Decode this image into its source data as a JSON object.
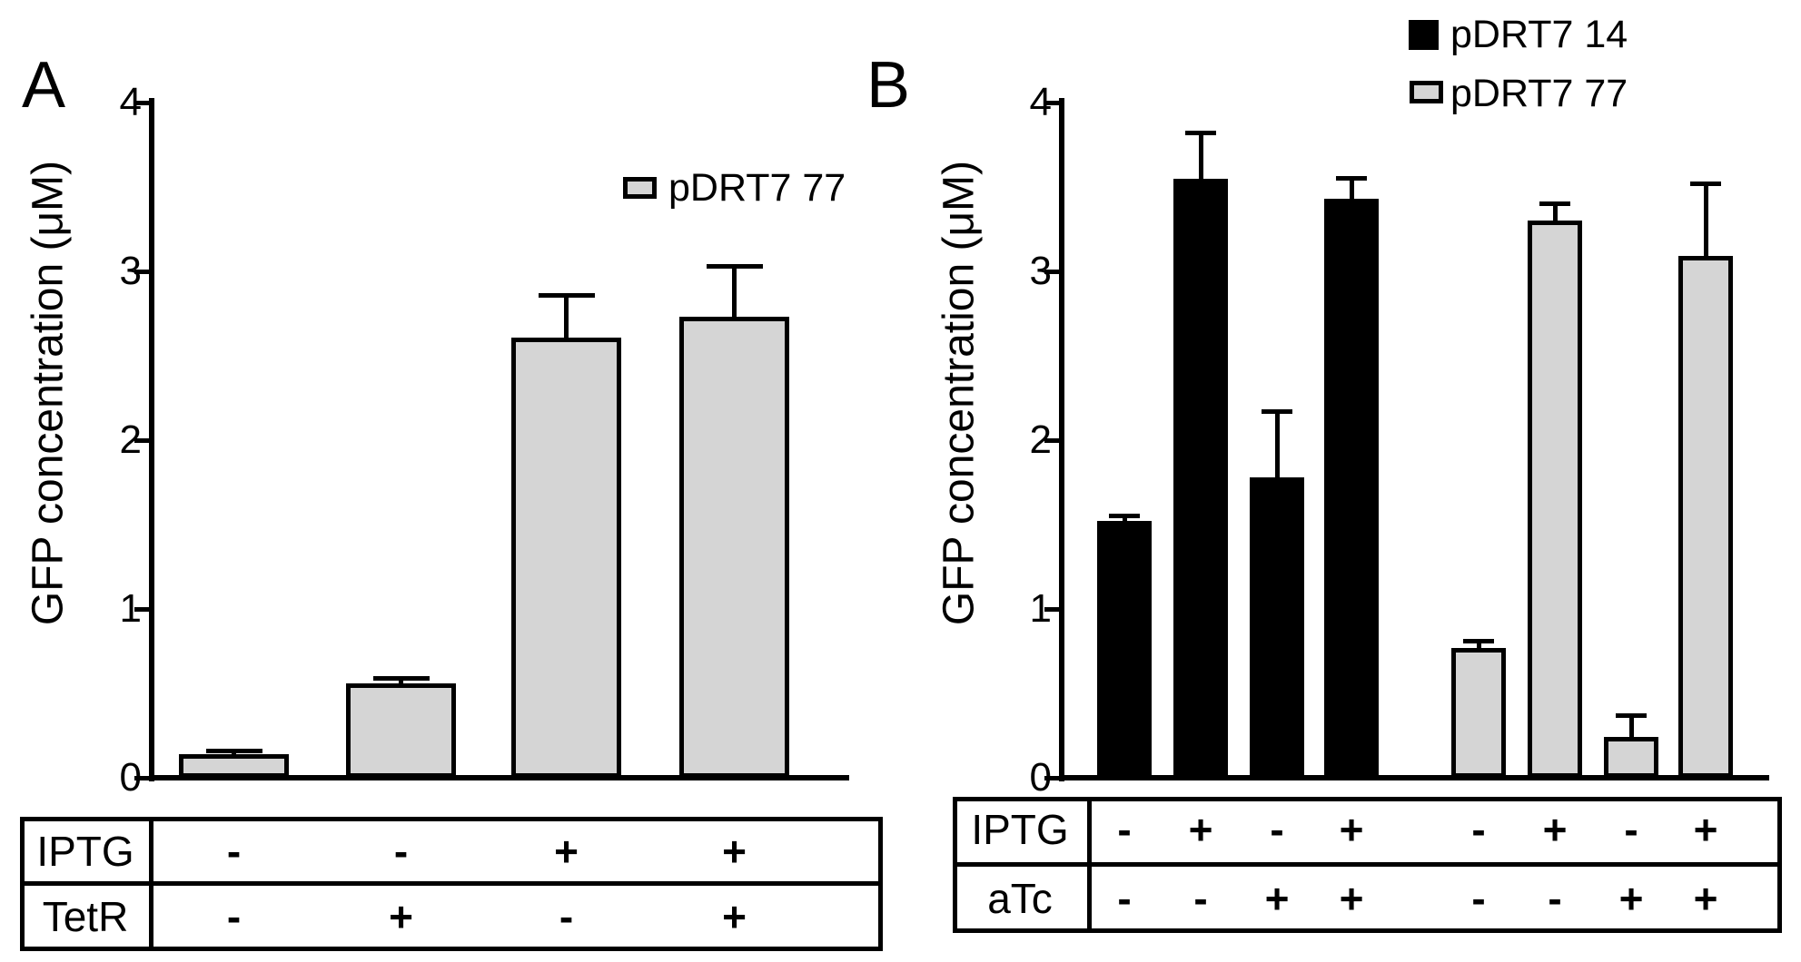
{
  "figure": {
    "panels": [
      {
        "letter": "A",
        "y_axis_label": "GFP concentration (μM)",
        "y_ticks": [
          "0",
          "1",
          "2",
          "3",
          "4"
        ],
        "legend": [
          {
            "label": "pDRT7 77",
            "swatch_color": "#d5d5d5"
          }
        ],
        "chart_data": {
          "type": "bar",
          "title": "",
          "xlabel": "",
          "ylabel": "GFP concentration (μM)",
          "ylim": [
            0,
            4
          ],
          "grid": false,
          "legend_position": "upper right",
          "series": [
            {
              "name": "pDRT7 77",
              "color": "#d5d5d5",
              "values": [
                0.14,
                0.56,
                2.61,
                2.73
              ],
              "errors": [
                0.02,
                0.03,
                0.25,
                0.3
              ]
            }
          ],
          "conditions": [
            {
              "label": "IPTG",
              "values": [
                "-",
                "-",
                "+",
                "+"
              ]
            },
            {
              "label": "TetR",
              "values": [
                "-",
                "+",
                "-",
                "+"
              ]
            }
          ]
        }
      },
      {
        "letter": "B",
        "y_axis_label": "GFP concentration (μM)",
        "y_ticks": [
          "0",
          "1",
          "2",
          "3",
          "4"
        ],
        "legend": [
          {
            "label": "pDRT7 14",
            "swatch_color": "#000000"
          },
          {
            "label": "pDRT7 77",
            "swatch_color": "#d5d5d5"
          }
        ],
        "chart_data": {
          "type": "bar",
          "title": "",
          "xlabel": "",
          "ylabel": "GFP concentration (μM)",
          "ylim": [
            0,
            4
          ],
          "grid": false,
          "legend_position": "upper right",
          "series": [
            {
              "name": "pDRT7 14",
              "color": "#000000",
              "values": [
                1.52,
                3.55,
                1.78,
                3.43
              ],
              "errors": [
                0.03,
                0.27,
                0.39,
                0.12
              ]
            },
            {
              "name": "pDRT7 77",
              "color": "#d5d5d5",
              "values": [
                0.77,
                3.3,
                0.24,
                3.09
              ],
              "errors": [
                0.04,
                0.1,
                0.13,
                0.43
              ]
            }
          ],
          "conditions": [
            {
              "label": "IPTG",
              "values": [
                "-",
                "+",
                "-",
                "+",
                "-",
                "+",
                "-",
                "+"
              ]
            },
            {
              "label": "aTc",
              "values": [
                "-",
                "-",
                "+",
                "+",
                "-",
                "-",
                "+",
                "+"
              ]
            }
          ]
        }
      }
    ]
  }
}
